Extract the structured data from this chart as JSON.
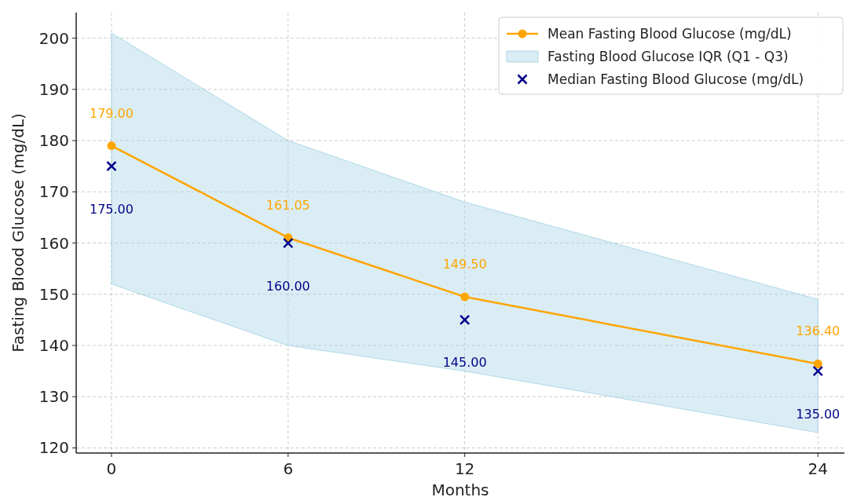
{
  "chart_data": {
    "type": "line",
    "xlabel": "Months",
    "ylabel": "Fasting Blood Glucose (mg/dL)",
    "x": [
      0,
      6,
      12,
      24
    ],
    "xlim": [
      -1.2,
      24.9
    ],
    "xticks": [
      0,
      6,
      12,
      24
    ],
    "ylim": [
      119,
      205
    ],
    "yticks": [
      120,
      130,
      140,
      150,
      160,
      170,
      180,
      190,
      200
    ],
    "grid": true,
    "legend": "top right",
    "series": [
      {
        "name": "Mean Fasting Blood Glucose (mg/dL)",
        "color": "#ffa500",
        "marker": "circle",
        "values": [
          179,
          161.05,
          149.5,
          136.4
        ],
        "value_labels": [
          "179.00",
          "161.05",
          "149.50",
          "136.40"
        ]
      },
      {
        "name": "Fasting Blood Glucose IQR (Q1 - Q3)",
        "type": "area",
        "color": "#add8e6",
        "values": [
          null,
          null,
          null,
          null
        ],
        "lower": [
          152,
          140,
          135,
          123
        ],
        "upper": [
          201,
          180,
          168,
          149
        ]
      },
      {
        "name": "Median Fasting Blood Glucose (mg/dL)",
        "type": "scatter",
        "color": "#00008b",
        "marker": "cross",
        "values": [
          175,
          160,
          145,
          135
        ],
        "value_labels": [
          "175.00",
          "160.00",
          "145.00",
          "135.00"
        ]
      }
    ]
  }
}
